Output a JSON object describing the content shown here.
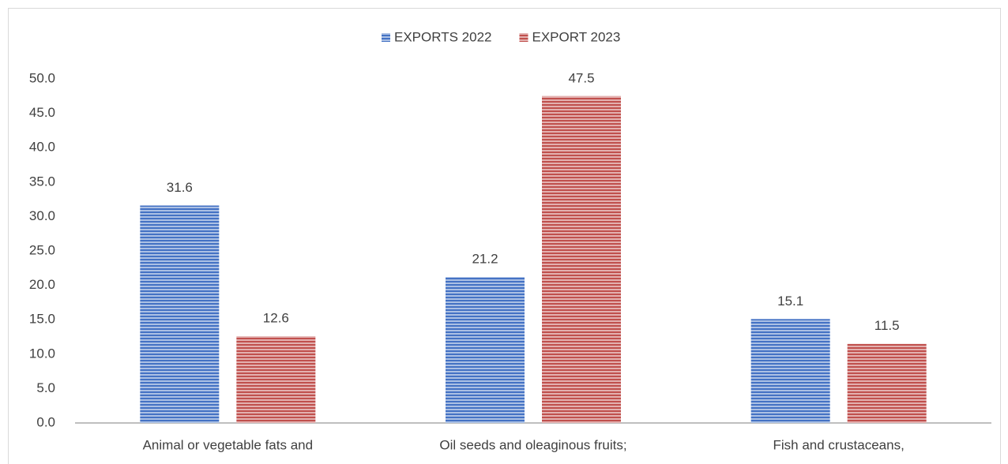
{
  "chart_data": {
    "type": "bar",
    "categories": [
      "Animal or vegetable fats and",
      "Oil seeds and oleaginous fruits;",
      "Fish and crustaceans,"
    ],
    "series": [
      {
        "name": "EXPORTS 2022",
        "color": "#4472c4",
        "values": [
          31.6,
          21.2,
          15.1
        ]
      },
      {
        "name": "EXPORT 2023",
        "color": "#c0504d",
        "values": [
          12.6,
          47.5,
          11.5
        ]
      }
    ],
    "ylim": [
      0,
      50
    ],
    "yticks": [
      {
        "value": 0,
        "label": "0.0"
      },
      {
        "value": 5,
        "label": "5.0"
      },
      {
        "value": 10,
        "label": "10.0"
      },
      {
        "value": 15,
        "label": "15.0"
      },
      {
        "value": 20,
        "label": "20.0"
      },
      {
        "value": 25,
        "label": "25.0"
      },
      {
        "value": 30,
        "label": "30.0"
      },
      {
        "value": 35,
        "label": "35.0"
      },
      {
        "value": 40,
        "label": "40.0"
      },
      {
        "value": 45,
        "label": "45.0"
      },
      {
        "value": 50,
        "label": "50.0"
      }
    ],
    "grid": false,
    "legend": "top"
  }
}
